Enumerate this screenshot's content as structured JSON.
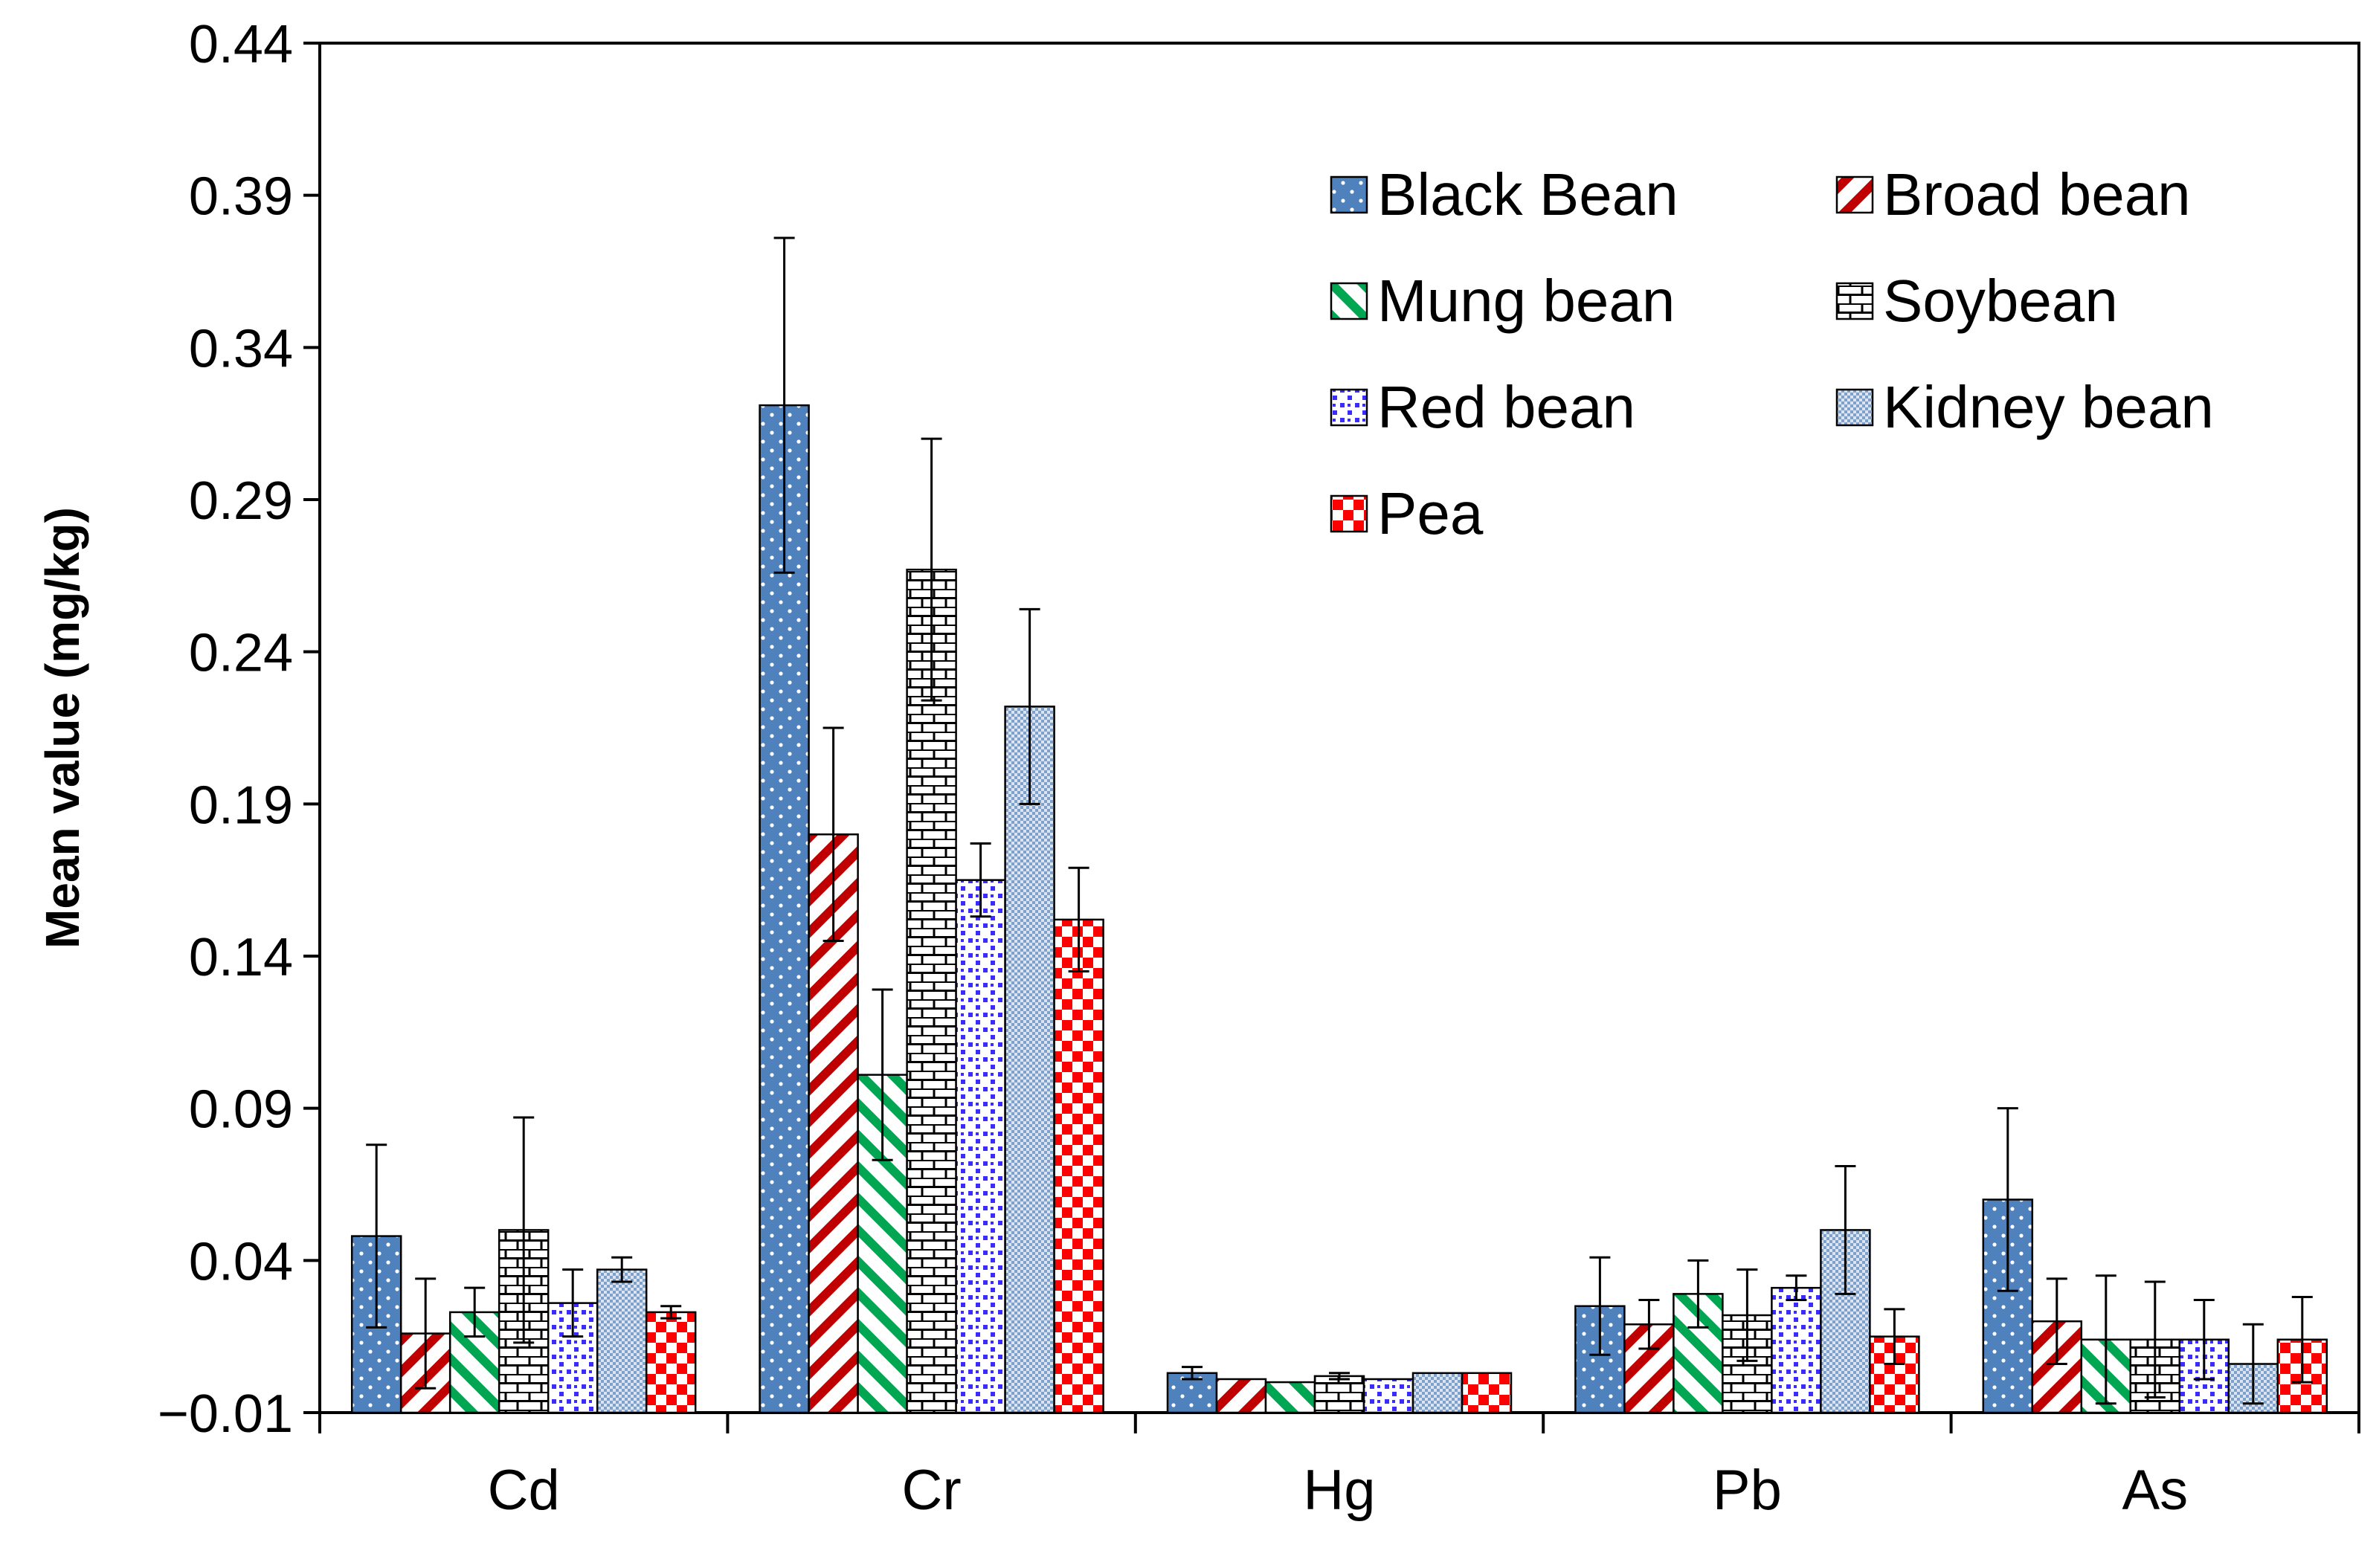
{
  "chart_data": {
    "type": "bar",
    "title": "",
    "xlabel": "",
    "ylabel": "Mean value (mg/kg)",
    "ylim": [
      -0.01,
      0.44
    ],
    "yticks": [
      "0.44",
      "0.39",
      "0.34",
      "0.29",
      "0.24",
      "0.19",
      "0.14",
      "0.09",
      "0.04",
      "−0.01"
    ],
    "ytick_values": [
      0.44,
      0.39,
      0.34,
      0.29,
      0.24,
      0.19,
      0.14,
      0.09,
      0.04,
      -0.01
    ],
    "categories": [
      "Cd",
      "Cr",
      "Hg",
      "Pb",
      "As"
    ],
    "grid": false,
    "legend_position": "top-right",
    "error_bars": true,
    "series": [
      {
        "name": "Black Bean",
        "color": "#4f81bd",
        "pattern": "dots",
        "values": [
          0.048,
          0.321,
          0.003,
          0.025,
          0.06
        ],
        "errors": [
          0.03,
          0.055,
          0.002,
          0.016,
          0.03
        ]
      },
      {
        "name": "Broad bean",
        "color": "#c00000",
        "pattern": "diag-red",
        "values": [
          0.016,
          0.18,
          0.001,
          0.019,
          0.02
        ],
        "errors": [
          0.018,
          0.035,
          0.0,
          0.008,
          0.014
        ]
      },
      {
        "name": "Mung bean",
        "color": "#00a651",
        "pattern": "diag-green",
        "values": [
          0.023,
          0.101,
          0.0,
          0.029,
          0.014
        ],
        "errors": [
          0.008,
          0.028,
          0.0,
          0.011,
          0.021
        ]
      },
      {
        "name": "Soybean",
        "color": "#000000",
        "pattern": "bricks",
        "values": [
          0.05,
          0.267,
          0.002,
          0.022,
          0.014
        ],
        "errors": [
          0.037,
          0.043,
          0.001,
          0.015,
          0.019
        ]
      },
      {
        "name": "Red bean",
        "color": "#3a2cff",
        "pattern": "confetti",
        "values": [
          0.026,
          0.165,
          0.001,
          0.031,
          0.014
        ],
        "errors": [
          0.011,
          0.012,
          0.0,
          0.004,
          0.013
        ]
      },
      {
        "name": "Kidney bean",
        "color": "#7fa1c9",
        "pattern": "grid",
        "values": [
          0.037,
          0.222,
          0.003,
          0.05,
          0.006
        ],
        "errors": [
          0.004,
          0.032,
          0.0,
          0.021,
          0.013
        ]
      },
      {
        "name": "Pea",
        "color": "#ff0000",
        "pattern": "checker",
        "values": [
          0.023,
          0.152,
          0.003,
          0.015,
          0.014
        ],
        "errors": [
          0.002,
          0.017,
          0.0,
          0.009,
          0.014
        ]
      }
    ]
  }
}
